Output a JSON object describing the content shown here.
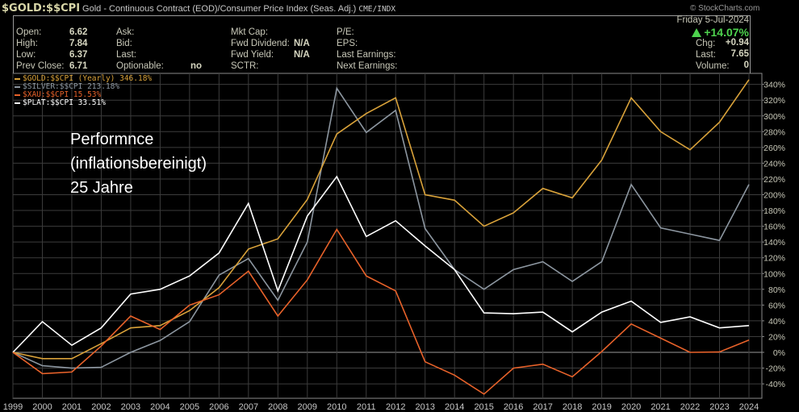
{
  "header": {
    "symbol": "$GOLD:$$CPI",
    "description": "Gold - Continuous Contract (EOD)/Consumer Price Index (Seas. Adj.)",
    "exchange": "CME/INDX",
    "copyright": "© StockCharts.com"
  },
  "quote": {
    "open_label": "Open:",
    "open": "6.62",
    "high_label": "High:",
    "high": "7.84",
    "low_label": "Low:",
    "low": "6.37",
    "prev_close_label": "Prev Close:",
    "prev_close": "6.71",
    "ask_label": "Ask:",
    "bid_label": "Bid:",
    "last_label_mid": "Last:",
    "optionable_label": "Optionable:",
    "optionable": "no",
    "mkt_cap_label": "Mkt Cap:",
    "fwd_dividend_label": "Fwd Dividend:",
    "fwd_dividend": "N/A",
    "fwd_yield_label": "Fwd Yield:",
    "fwd_yield": "N/A",
    "sctr_label": "SCTR:",
    "pe_label": "P/E:",
    "eps_label": "EPS:",
    "last_earnings_label": "Last Earnings:",
    "next_earnings_label": "Next Earnings:",
    "date": "Friday  5-Jul-2024",
    "pct_change": "+14.07%",
    "chg_label": "Chg:",
    "chg": "+0.94",
    "last_label": "Last:",
    "last": "7.65",
    "volume_label": "Volume:",
    "volume": "0"
  },
  "annotation": {
    "line1": "Performnce",
    "line2": "(inflationsbereinigt)",
    "line3": "25 Jahre"
  },
  "chart_data": {
    "type": "line",
    "title": "$GOLD:$$CPI",
    "xlabel": "",
    "ylabel": "",
    "x": [
      1999,
      2000,
      2001,
      2002,
      2003,
      2004,
      2005,
      2006,
      2007,
      2008,
      2009,
      2010,
      2011,
      2012,
      2013,
      2014,
      2015,
      2016,
      2017,
      2018,
      2019,
      2020,
      2021,
      2022,
      2023,
      2024
    ],
    "x_tick_labels": [
      "1999",
      "2000",
      "2001",
      "2002",
      "2003",
      "2004",
      "2005",
      "2006",
      "2007",
      "2008",
      "2009",
      "2010",
      "2011",
      "2012",
      "2013",
      "2014",
      "2015",
      "2016",
      "2017",
      "2018",
      "2019",
      "2020",
      "2021",
      "2022",
      "2023",
      "2024"
    ],
    "ylim": [
      -60,
      350
    ],
    "y_ticks": [
      -40,
      -20,
      0,
      20,
      40,
      60,
      80,
      100,
      120,
      140,
      160,
      180,
      200,
      220,
      240,
      260,
      280,
      300,
      320,
      340
    ],
    "y_tick_suffix": "%",
    "grid": true,
    "legend_position": "top-left",
    "series": [
      {
        "name": "$GOLD:$$CPI (Yearly) 346.18%",
        "color": "#d9a23a",
        "values": [
          0,
          -8,
          -8,
          11,
          31,
          34,
          53,
          82,
          131,
          144,
          194,
          277,
          303,
          323,
          200,
          193,
          160,
          177,
          208,
          196,
          244,
          323,
          280,
          257,
          292,
          346
        ]
      },
      {
        "name": "$SILVER:$$CPI 213.18%",
        "color": "#8c96a0",
        "values": [
          0,
          -17,
          -20,
          -19,
          0,
          15,
          39,
          98,
          119,
          66,
          140,
          335,
          279,
          307,
          157,
          105,
          80,
          105,
          115,
          90,
          115,
          213,
          158,
          150,
          142,
          213
        ]
      },
      {
        "name": "$XAU:$$CPI 15.53%",
        "color": "#e8622a",
        "values": [
          0,
          -27,
          -25,
          8,
          46,
          29,
          60,
          73,
          103,
          46,
          92,
          156,
          97,
          78,
          -12,
          -29,
          -53,
          -20,
          -15,
          -31,
          1,
          36,
          18,
          0,
          0.5,
          15.5
        ]
      },
      {
        "name": "$PLAT:$$CPI 33.51%",
        "color": "#ffffff",
        "values": [
          0,
          39,
          9,
          31,
          74,
          80,
          97,
          126,
          189,
          78,
          173,
          223,
          147,
          167,
          135,
          105,
          50,
          49,
          51,
          26,
          51,
          65,
          38,
          45,
          31,
          34
        ]
      }
    ]
  }
}
